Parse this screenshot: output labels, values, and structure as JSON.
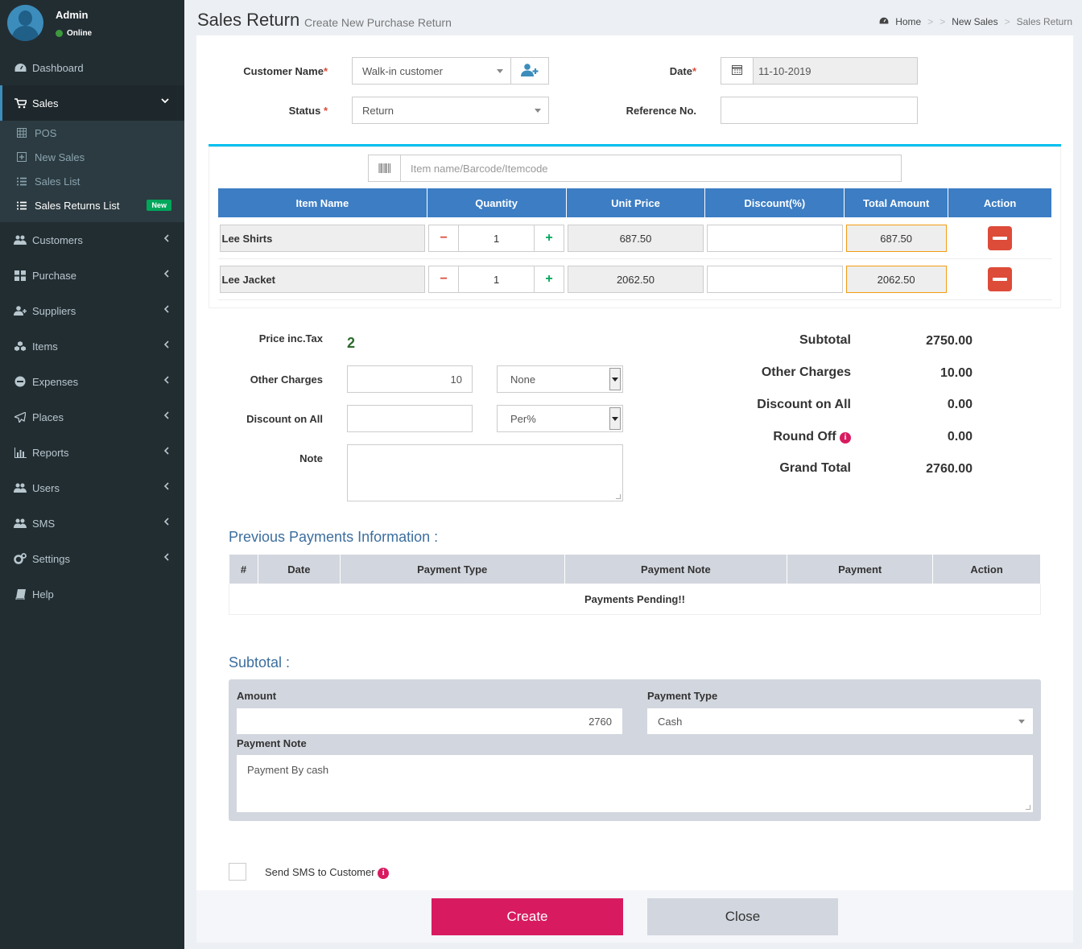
{
  "user": {
    "name": "Admin",
    "status": "Online"
  },
  "nav": {
    "dashboard": "Dashboard",
    "sales": "Sales",
    "sales_sub": {
      "pos": "POS",
      "new_sales": "New Sales",
      "sales_list": "Sales List",
      "sales_returns_list": "Sales Returns List",
      "new_badge": "New"
    },
    "customers": "Customers",
    "purchase": "Purchase",
    "suppliers": "Suppliers",
    "items": "Items",
    "expenses": "Expenses",
    "places": "Places",
    "reports": "Reports",
    "users": "Users",
    "sms": "SMS",
    "settings": "Settings",
    "help": "Help"
  },
  "header": {
    "title": "Sales Return",
    "subtitle": "Create New Purchase Return",
    "breadcrumb": {
      "home": "Home",
      "sep1": ">",
      "sep2": ">",
      "new_sales": "New Sales",
      "sep3": ">",
      "current": "Sales Return"
    }
  },
  "form": {
    "customer_label": "Customer Name",
    "customer_value": "Walk-in customer",
    "date_label": "Date",
    "date_value": "11-10-2019",
    "status_label": "Status",
    "status_value": "Return",
    "reference_label": "Reference No.",
    "reference_value": "",
    "required_mark": "*"
  },
  "search": {
    "placeholder": "Item name/Barcode/Itemcode"
  },
  "items_table": {
    "headers": {
      "name": "Item Name",
      "qty": "Quantity",
      "price": "Unit Price",
      "discount": "Discount(%)",
      "total": "Total Amount",
      "action": "Action"
    },
    "rows": [
      {
        "name": "Lee Shirts",
        "qty": "1",
        "price": "687.50",
        "discount": "",
        "total": "687.50"
      },
      {
        "name": "Lee Jacket",
        "qty": "1",
        "price": "2062.50",
        "discount": "",
        "total": "2062.50"
      }
    ],
    "minus": "−",
    "plus": "+"
  },
  "lower": {
    "tax_label": "Price inc.Tax",
    "tax_value": "2",
    "other_charges_label": "Other Charges",
    "other_charges_value": "10",
    "other_charges_type": "None",
    "discount_all_label": "Discount on All",
    "discount_all_value": "",
    "discount_all_type": "Per%",
    "note_label": "Note"
  },
  "totals": {
    "subtotal_label": "Subtotal",
    "subtotal_value": "2750.00",
    "other_label": "Other Charges",
    "other_value": "10.00",
    "discount_label": "Discount on All",
    "discount_value": "0.00",
    "round_label": "Round Off",
    "round_value": "0.00",
    "grand_label": "Grand Total",
    "grand_value": "2760.00"
  },
  "payments": {
    "title": "Previous Payments Information :",
    "headers": {
      "num": "#",
      "date": "Date",
      "type": "Payment Type",
      "note": "Payment Note",
      "payment": "Payment",
      "action": "Action"
    },
    "empty": "Payments Pending!!"
  },
  "subtotal_section": {
    "title": "Subtotal :",
    "amount_label": "Amount",
    "amount_value": "2760",
    "payment_type_label": "Payment Type",
    "payment_type_value": "Cash",
    "payment_note_label": "Payment Note",
    "payment_note_value": "Payment By cash"
  },
  "sms": {
    "label": "Send SMS to Customer"
  },
  "buttons": {
    "create": "Create",
    "close": "Close"
  },
  "icons": {
    "info": "i"
  },
  "colors": {
    "accent": "#3c8dbc",
    "table_header": "#3c7dc4",
    "create": "#d81b60",
    "danger": "#dd4b39",
    "success": "#00a65a"
  }
}
